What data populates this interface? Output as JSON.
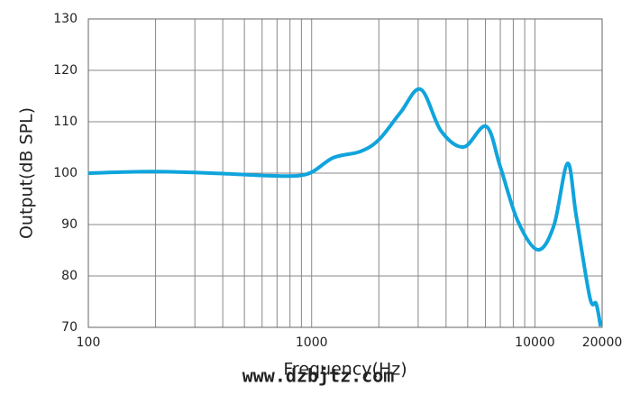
{
  "chart_data": {
    "type": "line",
    "xlabel": "Frequency(Hz)",
    "ylabel": "Output(dB SPL)",
    "watermark": "www.dzbjtz.com",
    "xscale": "log",
    "xlim": [
      100,
      20000
    ],
    "ylim": [
      70,
      130
    ],
    "xticks": [
      100,
      1000,
      10000,
      20000
    ],
    "yticks": [
      70,
      80,
      90,
      100,
      110,
      120,
      130
    ],
    "xgrid": [
      200,
      300,
      400,
      500,
      600,
      700,
      800,
      900,
      2000,
      3000,
      4000,
      5000,
      6000,
      7000,
      8000,
      9000
    ],
    "grid": true,
    "series": [
      {
        "color": "#10a4dc",
        "x": [
          100,
          195,
          410,
          650,
          950,
          1250,
          1650,
          2000,
          2500,
          3080,
          3800,
          4800,
          6050,
          7000,
          8380,
          10300,
          12160,
          14000,
          15320,
          17620,
          18800,
          19680
        ],
        "values": [
          100,
          100.3,
          99.9,
          99.5,
          99.8,
          103,
          104.2,
          106.5,
          111.8,
          116.3,
          108.2,
          105.1,
          109.1,
          101.2,
          90.7,
          85.1,
          89.8,
          101.9,
          91.6,
          75.8,
          74.6,
          70.2
        ]
      }
    ]
  }
}
